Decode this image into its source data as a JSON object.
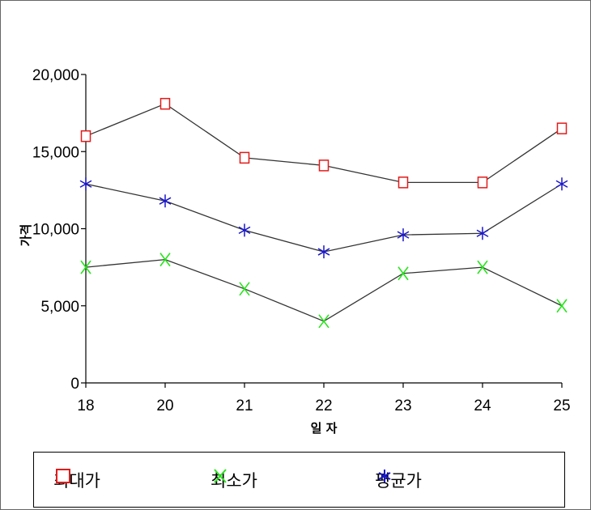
{
  "chart_data": {
    "type": "line",
    "categories": [
      "18",
      "20",
      "21",
      "22",
      "23",
      "24",
      "25"
    ],
    "ylabel": "가격",
    "xlabel": "일 자",
    "ylim": [
      0,
      20000
    ],
    "yticks": [
      0,
      5000,
      10000,
      15000,
      20000
    ],
    "ytick_labels": [
      "0",
      "5,000",
      "10,000",
      "15,000",
      "20,000"
    ],
    "grid": false,
    "legend_position": "bottom",
    "series": [
      {
        "name": "최대가",
        "color": "#e21b1b",
        "marker": "square-icon",
        "values": [
          16000,
          18100,
          14600,
          14100,
          13000,
          13000,
          16500
        ]
      },
      {
        "name": "최소가",
        "color": "#27e51b",
        "marker": "x-icon",
        "values": [
          7500,
          8000,
          6100,
          4000,
          7100,
          7500,
          5000
        ]
      },
      {
        "name": "평균가",
        "color": "#1a17c9",
        "marker": "asterisk-icon",
        "values": [
          12900,
          11800,
          9900,
          8500,
          9600,
          9700,
          12900
        ]
      }
    ]
  }
}
